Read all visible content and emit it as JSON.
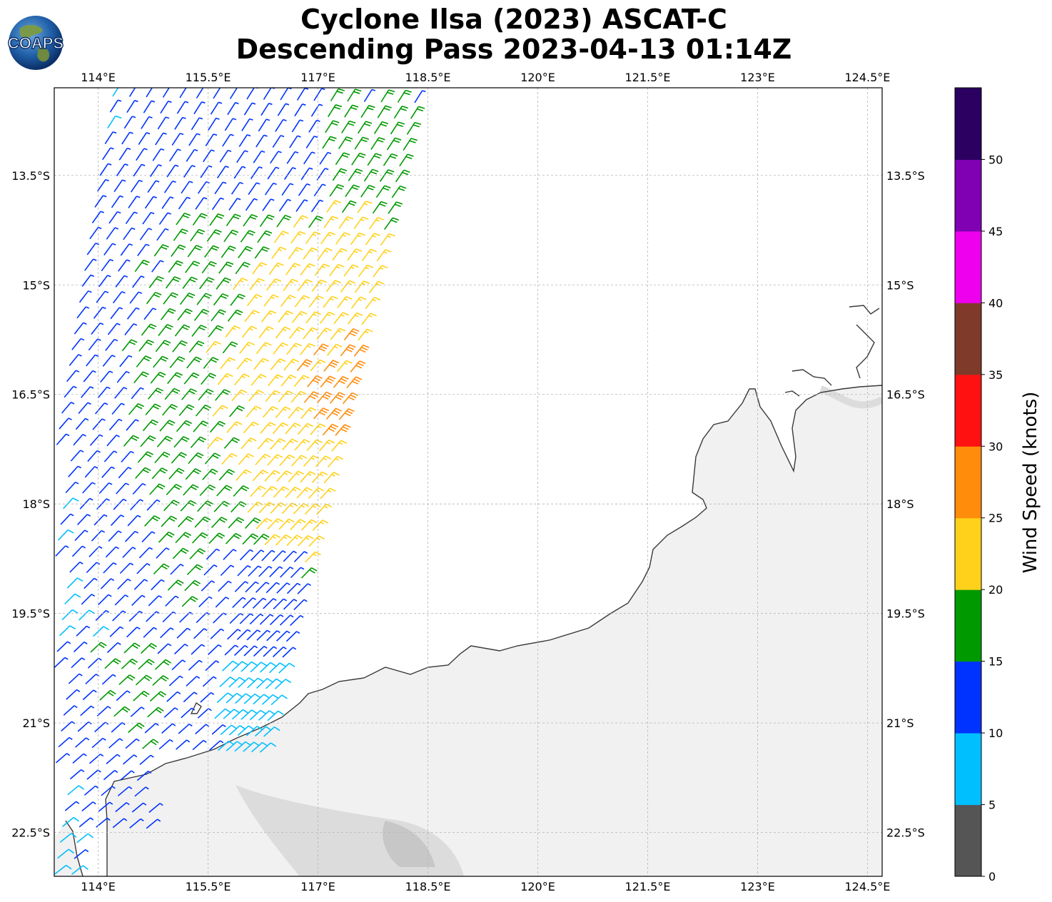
{
  "title": {
    "line1": "Cyclone Ilsa (2023) ASCAT-C",
    "line2": "Descending Pass 2023-04-13 01:14Z"
  },
  "logo": {
    "text": "COAPS"
  },
  "map": {
    "lon_range": [
      113.4,
      124.7
    ],
    "lat_range": [
      -23.1,
      -12.3
    ],
    "lon_ticks": [
      "114°E",
      "115.5°E",
      "117°E",
      "118.5°E",
      "120°E",
      "121.5°E",
      "123°E",
      "124.5°E"
    ],
    "lat_ticks": [
      "13.5°S",
      "15°S",
      "16.5°S",
      "18°S",
      "19.5°S",
      "21°S",
      "22.5°S"
    ],
    "gridlines": true,
    "land_color": "#f1f1f1",
    "coast_color": "#444444"
  },
  "colorbar": {
    "label": "Wind Speed (knots)",
    "ticks": [
      "0",
      "5",
      "10",
      "15",
      "20",
      "25",
      "30",
      "35",
      "40",
      "45",
      "50"
    ],
    "bins": [
      {
        "min": 0,
        "max": 5,
        "color": "#555555"
      },
      {
        "min": 5,
        "max": 10,
        "color": "#00bfff"
      },
      {
        "min": 10,
        "max": 15,
        "color": "#0033ff"
      },
      {
        "min": 15,
        "max": 20,
        "color": "#009900"
      },
      {
        "min": 20,
        "max": 25,
        "color": "#ffd11a"
      },
      {
        "min": 25,
        "max": 30,
        "color": "#ff8c0a"
      },
      {
        "min": 30,
        "max": 35,
        "color": "#ff1111"
      },
      {
        "min": 35,
        "max": 40,
        "color": "#7f3a2a"
      },
      {
        "min": 40,
        "max": 45,
        "color": "#ee00ee"
      },
      {
        "min": 45,
        "max": 50,
        "color": "#8000b3"
      },
      {
        "min": 50,
        "max": 55,
        "color": "#2b0060"
      }
    ]
  }
}
